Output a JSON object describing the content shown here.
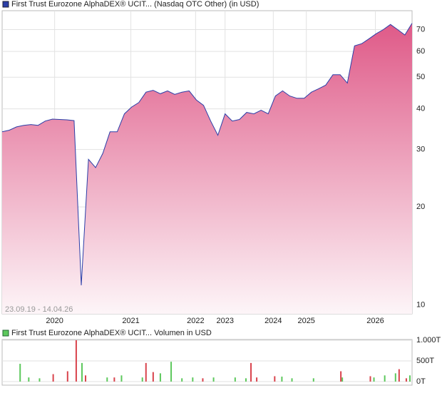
{
  "chart_data": [
    {
      "type": "area",
      "series": [
        {
          "name": "First Trust Eurozone AlphaDEX® UCIT... (Nasdaq OTC Other) (in USD)",
          "color": "#2b3ea8",
          "values": [
            34.0,
            34.4,
            35.2,
            35.6,
            35.8,
            35.6,
            36.7,
            37.2,
            37.1,
            37.0,
            36.8,
            11.5,
            28,
            26.4,
            29.2,
            34.0,
            34,
            38.6,
            40.5,
            41.8,
            45.0,
            45.6,
            44.5,
            45.4,
            44.3,
            45.0,
            45.4,
            42.6,
            41.0,
            36.7,
            33.2,
            38.6,
            36.7,
            37.1,
            39.0,
            38.6,
            39.6,
            38.6,
            43.8,
            45.4,
            43.8,
            43.1,
            43.1,
            45.0,
            46.1,
            47.3,
            50.9,
            50.9,
            48.0,
            62.4,
            63.4,
            65.6,
            68.0,
            70.0,
            72.6,
            70.0,
            67.4,
            73.2
          ]
        }
      ],
      "x": [
        0,
        1,
        2,
        3,
        4,
        5,
        6,
        7,
        8,
        9,
        10,
        11,
        12,
        13,
        14,
        15,
        16,
        17,
        18,
        19,
        20,
        21,
        22,
        23,
        24,
        25,
        26,
        27,
        28,
        29,
        30,
        31,
        32,
        33,
        34,
        35,
        36,
        37,
        38,
        39,
        40,
        41,
        42,
        43,
        44,
        45,
        46,
        47,
        48,
        49,
        50,
        51,
        52,
        53,
        54,
        55,
        56,
        57
      ],
      "xlim": [
        0,
        57
      ],
      "xticks": [
        {
          "value": 7.3,
          "label": "2020"
        },
        {
          "value": 17.9,
          "label": "2021"
        },
        {
          "value": 26.9,
          "label": "2022"
        },
        {
          "value": 31,
          "label": "2023"
        },
        {
          "value": 37.7,
          "label": "2024"
        },
        {
          "value": 42.3,
          "label": "2025"
        },
        {
          "value": 51.9,
          "label": "2026"
        }
      ],
      "ylim": [
        9.4,
        80
      ],
      "yscale": "log",
      "yticks": [
        10,
        20,
        30,
        40,
        50,
        60,
        70
      ],
      "annotation": "23.09.19 - 14.04.26",
      "grid": true
    },
    {
      "type": "bar",
      "series": [
        {
          "name": "First Trust Eurozone AlphaDEX® UCIT... Volumen in USD",
          "color": "#5cc85c",
          "x": [
            2.5,
            3.7,
            5.2,
            11.1,
            14.6,
            16.6,
            19.5,
            22.0,
            23.5,
            25.0,
            26.5,
            29.4,
            32.4,
            33.9,
            38.9,
            40.3,
            43.3,
            47.3,
            51.7,
            53.2,
            54.7,
            56.7
          ],
          "values": [
            430,
            100,
            80,
            450,
            100,
            150,
            100,
            200,
            480,
            80,
            100,
            100,
            100,
            80,
            120,
            80,
            80,
            100,
            100,
            150,
            200,
            150
          ]
        },
        {
          "color": "#d9434c",
          "x": [
            7.1,
            9.1,
            10.3,
            11.6,
            15.6,
            20.0,
            21.0,
            27.9,
            34.6,
            35.4,
            37.9,
            47.1,
            51.2,
            55.2,
            56.2
          ],
          "values": [
            180,
            250,
            1000,
            150,
            100,
            450,
            230,
            80,
            450,
            100,
            130,
            250,
            130,
            300,
            80
          ]
        }
      ],
      "xlim": [
        0,
        57
      ],
      "ylim": [
        0,
        1000
      ],
      "yticks": [
        {
          "value": 0,
          "label": "0T"
        },
        {
          "value": 500,
          "label": "500T"
        },
        {
          "value": 1000,
          "label": "1.000T"
        }
      ],
      "grid": true
    }
  ]
}
